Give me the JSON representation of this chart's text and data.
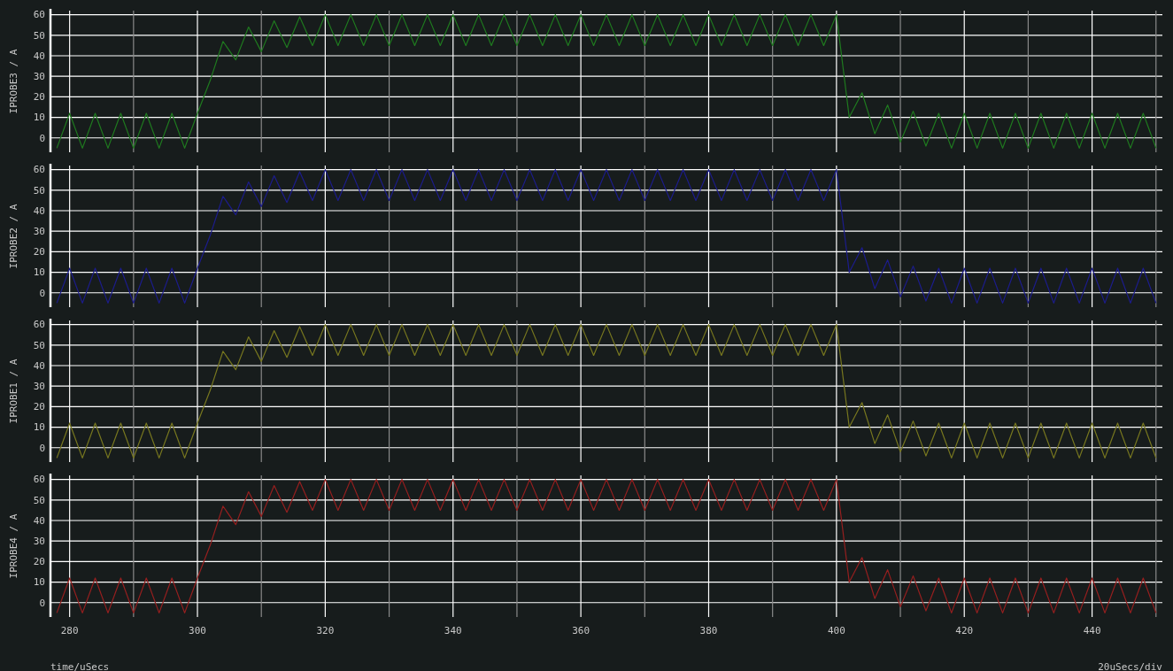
{
  "chart_data": [
    {
      "type": "line",
      "ylabel": "IPROBE3 / A",
      "color": "#1f7a1f",
      "x": [
        278,
        280,
        282,
        284,
        286,
        288,
        290,
        292,
        294,
        296,
        298,
        300,
        302,
        304,
        306,
        308,
        310,
        312,
        314,
        316,
        318,
        320,
        322,
        324,
        326,
        328,
        330,
        332,
        334,
        336,
        338,
        340,
        342,
        344,
        346,
        348,
        350,
        352,
        354,
        356,
        358,
        360,
        362,
        364,
        366,
        368,
        370,
        372,
        374,
        376,
        378,
        380,
        382,
        384,
        386,
        388,
        390,
        392,
        394,
        396,
        398,
        400,
        402,
        404,
        406,
        408,
        410,
        412,
        414,
        416,
        418,
        420,
        422,
        424,
        426,
        428,
        430,
        432,
        434,
        436,
        438,
        440,
        442,
        444,
        446,
        448,
        450
      ],
      "values": [
        -5,
        12,
        -5,
        12,
        -5,
        12,
        -5,
        12,
        -5,
        12,
        -5,
        12,
        28,
        47,
        38,
        54,
        42,
        57,
        44,
        59,
        45,
        60,
        45,
        60,
        45,
        60,
        45,
        60,
        45,
        60,
        45,
        60,
        45,
        60,
        45,
        60,
        45,
        60,
        45,
        60,
        45,
        60,
        45,
        60,
        45,
        60,
        45,
        60,
        45,
        60,
        45,
        60,
        45,
        60,
        45,
        60,
        45,
        60,
        45,
        60,
        45,
        60,
        10,
        22,
        2,
        16,
        -2,
        13,
        -4,
        12,
        -5,
        12,
        -5,
        12,
        -5,
        12,
        -5,
        12,
        -5,
        12,
        -5,
        12,
        -5,
        12,
        -5,
        12,
        -5
      ],
      "xlim": [
        277,
        451
      ],
      "ylim": [
        -7,
        62
      ],
      "yticks": [
        0,
        10,
        20,
        30,
        40,
        50,
        60
      ],
      "xticks": [
        280,
        {
          "value": 290,
          "label": null
        },
        300,
        {
          "value": 310,
          "label": null
        },
        320,
        {
          "value": 330,
          "label": null
        },
        340,
        {
          "value": 350,
          "label": null
        },
        360,
        {
          "value": 370,
          "label": null
        },
        380,
        {
          "value": 390,
          "label": null
        },
        400,
        {
          "value": 410,
          "label": null
        },
        420,
        {
          "value": 430,
          "label": null
        },
        440,
        {
          "value": 450,
          "label": null
        }
      ],
      "grid": true,
      "tick_labels": "y"
    },
    {
      "type": "line",
      "ylabel": "IPROBE2 / A",
      "color": "#1c1c8c",
      "x": [
        278,
        280,
        282,
        284,
        286,
        288,
        290,
        292,
        294,
        296,
        298,
        300,
        302,
        304,
        306,
        308,
        310,
        312,
        314,
        316,
        318,
        320,
        322,
        324,
        326,
        328,
        330,
        332,
        334,
        336,
        338,
        340,
        342,
        344,
        346,
        348,
        350,
        352,
        354,
        356,
        358,
        360,
        362,
        364,
        366,
        368,
        370,
        372,
        374,
        376,
        378,
        380,
        382,
        384,
        386,
        388,
        390,
        392,
        394,
        396,
        398,
        400,
        402,
        404,
        406,
        408,
        410,
        412,
        414,
        416,
        418,
        420,
        422,
        424,
        426,
        428,
        430,
        432,
        434,
        436,
        438,
        440,
        442,
        444,
        446,
        448,
        450
      ],
      "values": [
        -5,
        12,
        -5,
        12,
        -5,
        12,
        -5,
        12,
        -5,
        12,
        -5,
        12,
        28,
        47,
        38,
        54,
        42,
        57,
        44,
        59,
        45,
        60,
        45,
        60,
        45,
        60,
        45,
        60,
        45,
        60,
        45,
        60,
        45,
        60,
        45,
        60,
        45,
        60,
        45,
        60,
        45,
        60,
        45,
        60,
        45,
        60,
        45,
        60,
        45,
        60,
        45,
        60,
        45,
        60,
        45,
        60,
        45,
        60,
        45,
        60,
        45,
        60,
        10,
        22,
        2,
        16,
        -2,
        13,
        -4,
        12,
        -5,
        12,
        -5,
        12,
        -5,
        12,
        -5,
        12,
        -5,
        12,
        -5,
        12,
        -5,
        12,
        -5,
        12,
        -5
      ],
      "xlim": [
        277,
        451
      ],
      "ylim": [
        -7,
        62
      ],
      "yticks": [
        0,
        10,
        20,
        30,
        40,
        50,
        60
      ],
      "xticks": [
        280,
        {
          "value": 290,
          "label": null
        },
        300,
        {
          "value": 310,
          "label": null
        },
        320,
        {
          "value": 330,
          "label": null
        },
        340,
        {
          "value": 350,
          "label": null
        },
        360,
        {
          "value": 370,
          "label": null
        },
        380,
        {
          "value": 390,
          "label": null
        },
        400,
        {
          "value": 410,
          "label": null
        },
        420,
        {
          "value": 430,
          "label": null
        },
        440,
        {
          "value": 450,
          "label": null
        }
      ],
      "grid": true,
      "tick_labels": "y"
    },
    {
      "type": "line",
      "ylabel": "IPROBE1 / A",
      "color": "#77771f",
      "x": [
        278,
        280,
        282,
        284,
        286,
        288,
        290,
        292,
        294,
        296,
        298,
        300,
        302,
        304,
        306,
        308,
        310,
        312,
        314,
        316,
        318,
        320,
        322,
        324,
        326,
        328,
        330,
        332,
        334,
        336,
        338,
        340,
        342,
        344,
        346,
        348,
        350,
        352,
        354,
        356,
        358,
        360,
        362,
        364,
        366,
        368,
        370,
        372,
        374,
        376,
        378,
        380,
        382,
        384,
        386,
        388,
        390,
        392,
        394,
        396,
        398,
        400,
        402,
        404,
        406,
        408,
        410,
        412,
        414,
        416,
        418,
        420,
        422,
        424,
        426,
        428,
        430,
        432,
        434,
        436,
        438,
        440,
        442,
        444,
        446,
        448,
        450
      ],
      "values": [
        -5,
        12,
        -5,
        12,
        -5,
        12,
        -5,
        12,
        -5,
        12,
        -5,
        12,
        28,
        47,
        38,
        54,
        42,
        57,
        44,
        59,
        45,
        60,
        45,
        60,
        45,
        60,
        45,
        60,
        45,
        60,
        45,
        60,
        45,
        60,
        45,
        60,
        45,
        60,
        45,
        60,
        45,
        60,
        45,
        60,
        45,
        60,
        45,
        60,
        45,
        60,
        45,
        60,
        45,
        60,
        45,
        60,
        45,
        60,
        45,
        60,
        45,
        60,
        10,
        22,
        2,
        16,
        -2,
        13,
        -4,
        12,
        -5,
        12,
        -5,
        12,
        -5,
        12,
        -5,
        12,
        -5,
        12,
        -5,
        12,
        -5,
        12,
        -5,
        12,
        -5
      ],
      "xlim": [
        277,
        451
      ],
      "ylim": [
        -7,
        62
      ],
      "yticks": [
        0,
        10,
        20,
        30,
        40,
        50,
        60
      ],
      "xticks": [
        280,
        {
          "value": 290,
          "label": null
        },
        300,
        {
          "value": 310,
          "label": null
        },
        320,
        {
          "value": 330,
          "label": null
        },
        340,
        {
          "value": 350,
          "label": null
        },
        360,
        {
          "value": 370,
          "label": null
        },
        380,
        {
          "value": 390,
          "label": null
        },
        400,
        {
          "value": 410,
          "label": null
        },
        420,
        {
          "value": 430,
          "label": null
        },
        440,
        {
          "value": 450,
          "label": null
        }
      ],
      "grid": true,
      "tick_labels": "y"
    },
    {
      "type": "line",
      "ylabel": "IPROBE4 / A",
      "color": "#961f1f",
      "x": [
        278,
        280,
        282,
        284,
        286,
        288,
        290,
        292,
        294,
        296,
        298,
        300,
        302,
        304,
        306,
        308,
        310,
        312,
        314,
        316,
        318,
        320,
        322,
        324,
        326,
        328,
        330,
        332,
        334,
        336,
        338,
        340,
        342,
        344,
        346,
        348,
        350,
        352,
        354,
        356,
        358,
        360,
        362,
        364,
        366,
        368,
        370,
        372,
        374,
        376,
        378,
        380,
        382,
        384,
        386,
        388,
        390,
        392,
        394,
        396,
        398,
        400,
        402,
        404,
        406,
        408,
        410,
        412,
        414,
        416,
        418,
        420,
        422,
        424,
        426,
        428,
        430,
        432,
        434,
        436,
        438,
        440,
        442,
        444,
        446,
        448,
        450
      ],
      "values": [
        -5,
        12,
        -5,
        12,
        -5,
        12,
        -5,
        12,
        -5,
        12,
        -5,
        12,
        28,
        47,
        38,
        54,
        42,
        57,
        44,
        59,
        45,
        60,
        45,
        60,
        45,
        60,
        45,
        60,
        45,
        60,
        45,
        60,
        45,
        60,
        45,
        60,
        45,
        60,
        45,
        60,
        45,
        60,
        45,
        60,
        45,
        60,
        45,
        60,
        45,
        60,
        45,
        60,
        45,
        60,
        45,
        60,
        45,
        60,
        45,
        60,
        45,
        60,
        10,
        22,
        2,
        16,
        -2,
        13,
        -4,
        12,
        -5,
        12,
        -5,
        12,
        -5,
        12,
        -5,
        12,
        -5,
        12,
        -5,
        12,
        -5,
        12,
        -5,
        12,
        -5
      ],
      "xlim": [
        277,
        451
      ],
      "ylim": [
        -7,
        62
      ],
      "yticks": [
        0,
        10,
        20,
        30,
        40,
        50,
        60
      ],
      "xticks": [
        280,
        {
          "value": 290,
          "label": null
        },
        300,
        {
          "value": 310,
          "label": null
        },
        320,
        {
          "value": 330,
          "label": null
        },
        340,
        {
          "value": 350,
          "label": null
        },
        360,
        {
          "value": 370,
          "label": null
        },
        380,
        {
          "value": 390,
          "label": null
        },
        400,
        {
          "value": 410,
          "label": null
        },
        420,
        {
          "value": 430,
          "label": null
        },
        440,
        {
          "value": 450,
          "label": null
        }
      ],
      "grid": true,
      "annotations": [
        "time/uSecs",
        "20uSecs/div"
      ]
    }
  ]
}
